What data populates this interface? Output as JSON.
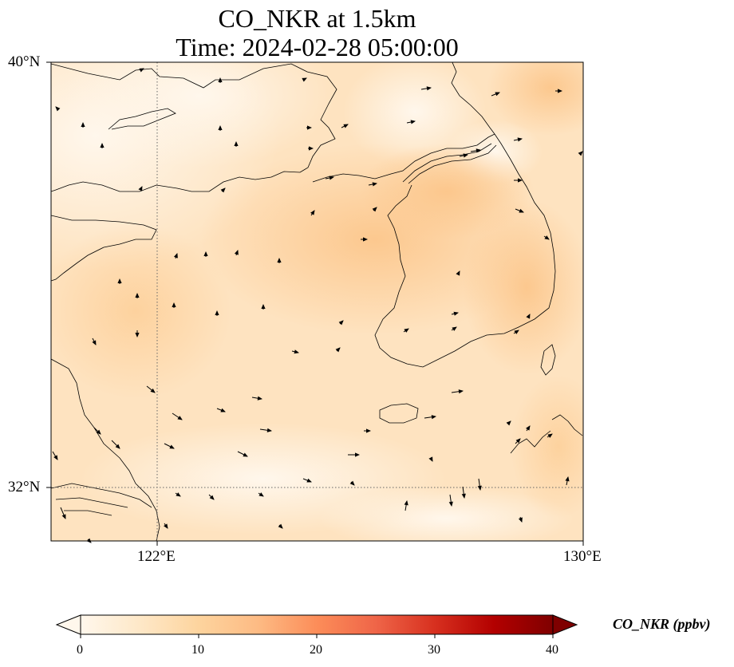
{
  "map": {
    "title_line1": "CO_NKR at 1.5km",
    "title_line2": "Time: 2024-02-28 05:00:00",
    "lat_labels": [
      "40°N",
      "32°N"
    ],
    "lon_labels": [
      "122°E",
      "130°E"
    ],
    "extent": {
      "lon": [
        120,
        130
      ],
      "lat": [
        31,
        40
      ]
    },
    "gridlines": {
      "lons": [
        122
      ],
      "lats": [
        32
      ],
      "style": "dotted"
    }
  },
  "colorbar": {
    "label": "CO_NKR (ppbv)",
    "ticks": [
      "0",
      "10",
      "20",
      "30",
      "40"
    ],
    "range": [
      0,
      40
    ],
    "colormap": "OrRd",
    "colors": [
      "#fff7ec",
      "#fee8c8",
      "#fdd49e",
      "#fdbb84",
      "#fc8d59",
      "#ef6548",
      "#d7301f",
      "#b30000",
      "#7f0000"
    ],
    "extend": "both"
  }
}
